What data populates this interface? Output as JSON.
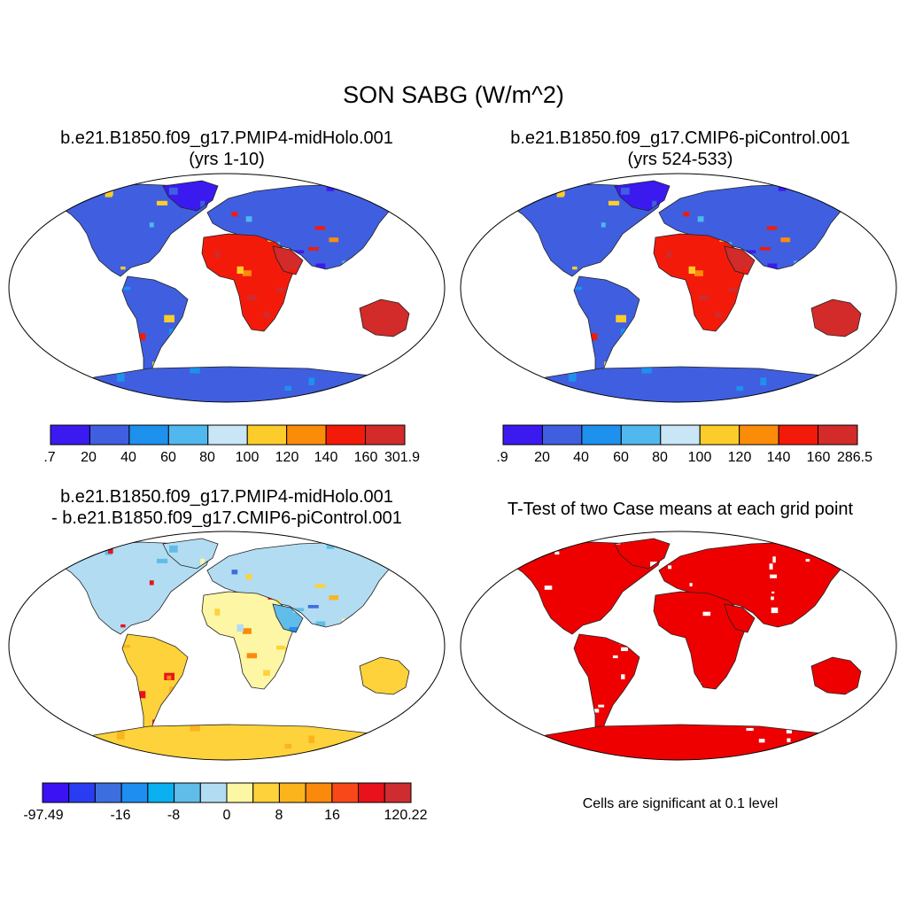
{
  "main_title": "SON SABG (W/m^2)",
  "panels": {
    "top_left": {
      "title_line1": "b.e21.B1850.f09_g17.PMIP4-midHolo.001",
      "title_line2": "(yrs 1-10)",
      "colorbar": {
        "colors": [
          "#3b1af0",
          "#3f5fe0",
          "#1e90ee",
          "#50b8ee",
          "#c8e6f6",
          "#fccd2a",
          "#fb8c0a",
          "#f41a0a",
          "#d32a2a"
        ],
        "labels": [
          ".7",
          "20",
          "40",
          "60",
          "80",
          "100",
          "120",
          "140",
          "160",
          "301.9"
        ]
      }
    },
    "top_right": {
      "title_line1": "b.e21.B1850.f09_g17.CMIP6-piControl.001",
      "title_line2": "(yrs 524-533)",
      "colorbar": {
        "colors": [
          "#3b1af0",
          "#3f5fe0",
          "#1e90ee",
          "#50b8ee",
          "#c8e6f6",
          "#fccd2a",
          "#fb8c0a",
          "#f41a0a",
          "#d32a2a"
        ],
        "labels": [
          ".9",
          "20",
          "40",
          "60",
          "80",
          "100",
          "120",
          "140",
          "160",
          "286.5"
        ]
      }
    },
    "bottom_left": {
      "title_line1": "b.e21.B1850.f09_g17.PMIP4-midHolo.001",
      "title_line2": "- b.e21.B1850.f09_g17.CMIP6-piControl.001",
      "colorbar": {
        "colors": [
          "#3a12f4",
          "#2a3cf2",
          "#3d6ee0",
          "#1e8ef0",
          "#0ab0f0",
          "#60bce8",
          "#b2dcf2",
          "#fdf6a4",
          "#fdd23a",
          "#fcb41c",
          "#fb8a0c",
          "#f8481a",
          "#e8121c",
          "#ce2c30"
        ],
        "labels": [
          "-97.49",
          "-16",
          "-8",
          "0",
          "8",
          "16",
          "120.22"
        ]
      }
    },
    "bottom_right": {
      "title_line1": "T-Test of two Case means at each grid point",
      "note": "Cells are significant at 0.1 level",
      "significant_color": "#ee0000"
    }
  }
}
